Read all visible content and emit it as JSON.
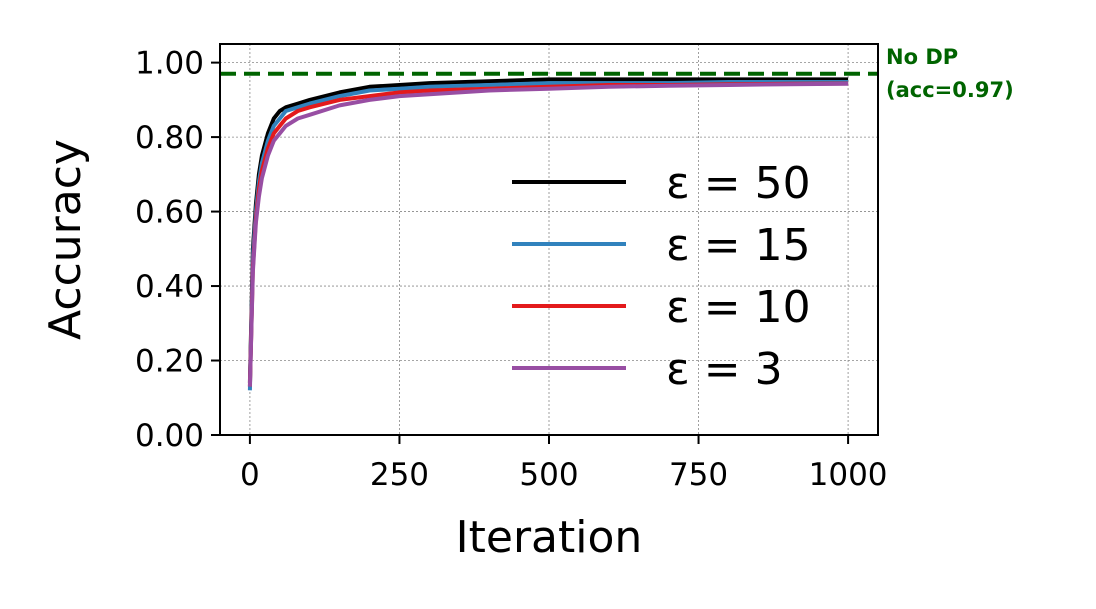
{
  "chart_data": {
    "type": "line",
    "xlabel": "Iteration",
    "ylabel": "Accuracy",
    "xlim": [
      -50,
      1050
    ],
    "ylim": [
      0,
      1.05
    ],
    "x_ticks": [
      0,
      250,
      500,
      750,
      1000
    ],
    "x_tick_labels": [
      "0",
      "250",
      "500",
      "750",
      "1000"
    ],
    "y_ticks": [
      0,
      0.2,
      0.4,
      0.6,
      0.8,
      1.0
    ],
    "y_tick_labels": [
      "0.00",
      "0.20",
      "0.40",
      "0.60",
      "0.80",
      "1.00"
    ],
    "grid": true,
    "legend_position": "center-right",
    "reference_line": {
      "y": 0.97,
      "label_line1": "No DP",
      "label_line2": "(acc=0.97)",
      "color": "#006400",
      "style": "dashed"
    },
    "series": [
      {
        "name": "ε = 50",
        "color": "#000000",
        "x": [
          0,
          5,
          10,
          15,
          20,
          30,
          40,
          50,
          60,
          80,
          100,
          150,
          200,
          250,
          300,
          400,
          500,
          600,
          700,
          800,
          900,
          1000
        ],
        "y": [
          0.14,
          0.5,
          0.62,
          0.7,
          0.75,
          0.81,
          0.85,
          0.87,
          0.88,
          0.89,
          0.9,
          0.92,
          0.935,
          0.94,
          0.945,
          0.95,
          0.955,
          0.955,
          0.955,
          0.955,
          0.955,
          0.955
        ]
      },
      {
        "name": "ε = 15",
        "color": "#3182bd",
        "x": [
          0,
          5,
          10,
          15,
          20,
          30,
          40,
          50,
          60,
          80,
          100,
          150,
          200,
          250,
          300,
          400,
          500,
          600,
          700,
          800,
          900,
          1000
        ],
        "y": [
          0.12,
          0.48,
          0.6,
          0.68,
          0.73,
          0.79,
          0.83,
          0.85,
          0.87,
          0.88,
          0.89,
          0.91,
          0.925,
          0.93,
          0.935,
          0.94,
          0.945,
          0.945,
          0.945,
          0.948,
          0.948,
          0.948
        ]
      },
      {
        "name": "ε = 10",
        "color": "#e31a1c",
        "x": [
          0,
          5,
          10,
          15,
          20,
          30,
          40,
          50,
          60,
          80,
          100,
          150,
          200,
          250,
          300,
          400,
          500,
          600,
          700,
          800,
          900,
          1000
        ],
        "y": [
          0.13,
          0.45,
          0.58,
          0.66,
          0.71,
          0.77,
          0.81,
          0.83,
          0.85,
          0.87,
          0.88,
          0.9,
          0.91,
          0.92,
          0.925,
          0.93,
          0.935,
          0.94,
          0.94,
          0.942,
          0.943,
          0.944
        ]
      },
      {
        "name": "ε = 3",
        "color": "#984ea3",
        "x": [
          0,
          5,
          10,
          15,
          20,
          30,
          40,
          50,
          60,
          80,
          100,
          150,
          200,
          250,
          300,
          400,
          500,
          600,
          700,
          800,
          900,
          1000
        ],
        "y": [
          0.13,
          0.44,
          0.57,
          0.64,
          0.69,
          0.75,
          0.79,
          0.81,
          0.83,
          0.85,
          0.86,
          0.885,
          0.9,
          0.91,
          0.915,
          0.925,
          0.93,
          0.935,
          0.938,
          0.94,
          0.942,
          0.943
        ]
      }
    ]
  }
}
